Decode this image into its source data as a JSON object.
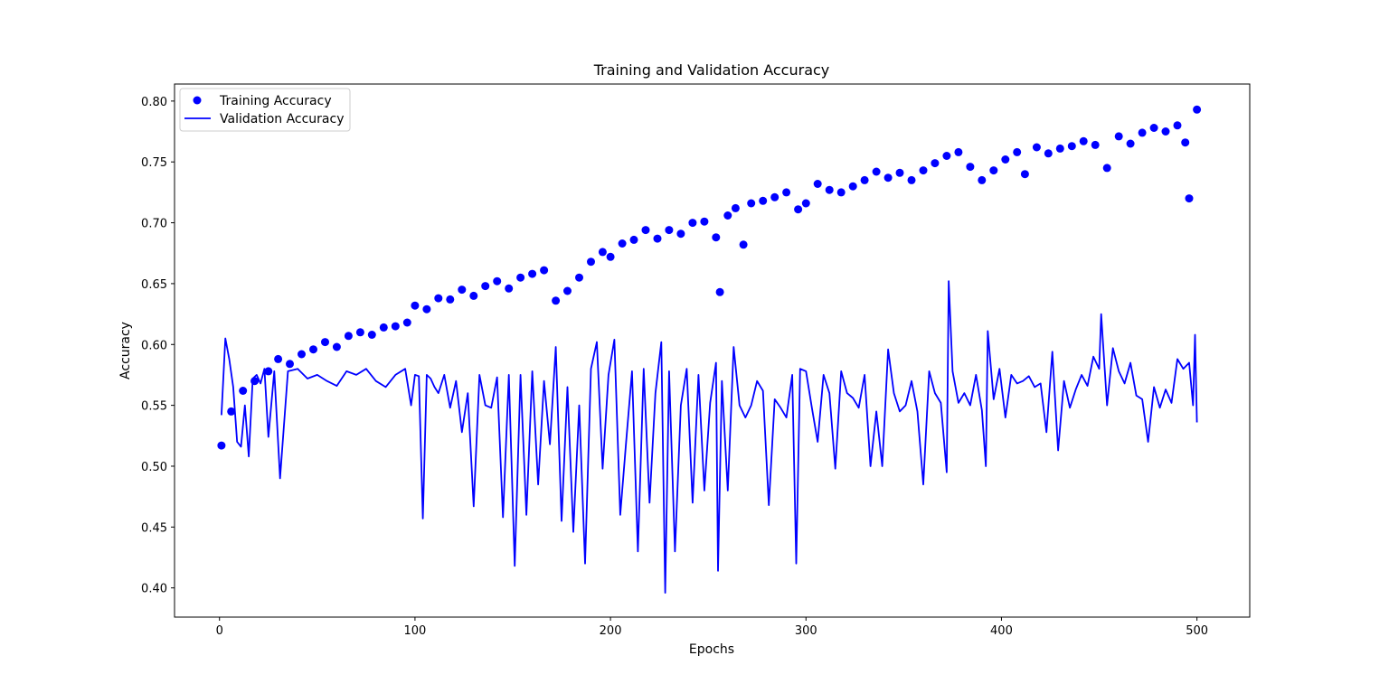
{
  "chart_data": {
    "type": "line",
    "title": "Training and Validation Accuracy",
    "xlabel": "Epochs",
    "ylabel": "Accuracy",
    "xlim": [
      -23,
      527
    ],
    "ylim": [
      0.376,
      0.814
    ],
    "xticks": [
      0,
      100,
      200,
      300,
      400,
      500
    ],
    "yticks": [
      0.4,
      0.45,
      0.5,
      0.55,
      0.6,
      0.65,
      0.7,
      0.75,
      0.8
    ],
    "grid": false,
    "legend_position": "top-left",
    "colors": {
      "series": "#0000ff",
      "axes": "#000000",
      "background": "#ffffff"
    },
    "series": [
      {
        "name": "Training Accuracy",
        "style": "markers",
        "x": [
          1,
          6,
          12,
          18,
          25,
          30,
          36,
          42,
          48,
          54,
          60,
          66,
          72,
          78,
          84,
          90,
          96,
          100,
          106,
          112,
          118,
          124,
          130,
          136,
          142,
          148,
          154,
          160,
          166,
          172,
          178,
          184,
          190,
          196,
          200,
          206,
          212,
          218,
          224,
          230,
          236,
          242,
          248,
          254,
          256,
          260,
          264,
          268,
          272,
          278,
          284,
          290,
          296,
          300,
          306,
          312,
          318,
          324,
          330,
          336,
          342,
          348,
          354,
          360,
          366,
          372,
          378,
          384,
          390,
          396,
          402,
          408,
          412,
          418,
          424,
          430,
          436,
          442,
          448,
          454,
          460,
          466,
          472,
          478,
          484,
          490,
          494,
          496,
          500
        ],
        "y": [
          0.517,
          0.545,
          0.562,
          0.57,
          0.578,
          0.588,
          0.584,
          0.592,
          0.596,
          0.602,
          0.598,
          0.607,
          0.61,
          0.608,
          0.614,
          0.615,
          0.618,
          0.632,
          0.629,
          0.638,
          0.637,
          0.645,
          0.64,
          0.648,
          0.652,
          0.646,
          0.655,
          0.658,
          0.661,
          0.636,
          0.644,
          0.655,
          0.668,
          0.676,
          0.672,
          0.683,
          0.686,
          0.694,
          0.687,
          0.694,
          0.691,
          0.7,
          0.701,
          0.688,
          0.643,
          0.706,
          0.712,
          0.682,
          0.716,
          0.718,
          0.721,
          0.725,
          0.711,
          0.716,
          0.732,
          0.727,
          0.725,
          0.73,
          0.735,
          0.742,
          0.737,
          0.741,
          0.735,
          0.743,
          0.749,
          0.755,
          0.758,
          0.746,
          0.735,
          0.743,
          0.752,
          0.758,
          0.74,
          0.762,
          0.757,
          0.761,
          0.763,
          0.767,
          0.764,
          0.745,
          0.771,
          0.765,
          0.774,
          0.778,
          0.775,
          0.78,
          0.766,
          0.72,
          0.793
        ]
      },
      {
        "name": "Validation Accuracy",
        "style": "line",
        "x": [
          1,
          3,
          5,
          7,
          9,
          11,
          13,
          15,
          17,
          19,
          21,
          23,
          25,
          28,
          31,
          35,
          40,
          45,
          50,
          55,
          60,
          65,
          70,
          75,
          80,
          85,
          90,
          95,
          98,
          100,
          102,
          104,
          106,
          108,
          110,
          112,
          115,
          118,
          121,
          124,
          127,
          130,
          133,
          136,
          139,
          142,
          145,
          148,
          151,
          154,
          157,
          160,
          163,
          166,
          169,
          172,
          175,
          178,
          181,
          184,
          187,
          190,
          193,
          196,
          199,
          202,
          205,
          208,
          211,
          214,
          217,
          220,
          223,
          226,
          228,
          230,
          233,
          236,
          239,
          242,
          245,
          248,
          251,
          254,
          255,
          257,
          260,
          263,
          266,
          269,
          272,
          275,
          278,
          281,
          284,
          287,
          290,
          293,
          295,
          297,
          300,
          303,
          306,
          309,
          312,
          315,
          318,
          321,
          324,
          327,
          330,
          333,
          336,
          339,
          342,
          345,
          348,
          351,
          354,
          357,
          360,
          363,
          366,
          369,
          372,
          373,
          375,
          378,
          381,
          384,
          387,
          390,
          392,
          393,
          396,
          399,
          402,
          405,
          408,
          411,
          414,
          417,
          420,
          423,
          426,
          429,
          432,
          435,
          438,
          441,
          444,
          447,
          450,
          451,
          454,
          457,
          460,
          463,
          466,
          469,
          472,
          475,
          478,
          481,
          484,
          487,
          490,
          493,
          496,
          498,
          499,
          500
        ],
        "y": [
          0.542,
          0.605,
          0.588,
          0.565,
          0.52,
          0.516,
          0.55,
          0.508,
          0.572,
          0.575,
          0.568,
          0.58,
          0.524,
          0.578,
          0.49,
          0.578,
          0.58,
          0.572,
          0.575,
          0.57,
          0.566,
          0.578,
          0.575,
          0.58,
          0.57,
          0.565,
          0.575,
          0.58,
          0.55,
          0.575,
          0.574,
          0.457,
          0.575,
          0.572,
          0.565,
          0.56,
          0.575,
          0.548,
          0.57,
          0.528,
          0.56,
          0.467,
          0.575,
          0.55,
          0.548,
          0.573,
          0.458,
          0.575,
          0.418,
          0.575,
          0.46,
          0.578,
          0.485,
          0.57,
          0.518,
          0.598,
          0.455,
          0.565,
          0.446,
          0.55,
          0.42,
          0.58,
          0.602,
          0.498,
          0.575,
          0.604,
          0.46,
          0.52,
          0.578,
          0.43,
          0.58,
          0.47,
          0.56,
          0.602,
          0.396,
          0.578,
          0.43,
          0.55,
          0.58,
          0.47,
          0.575,
          0.48,
          0.552,
          0.585,
          0.414,
          0.57,
          0.48,
          0.598,
          0.55,
          0.54,
          0.55,
          0.57,
          0.562,
          0.468,
          0.555,
          0.548,
          0.54,
          0.575,
          0.42,
          0.58,
          0.578,
          0.548,
          0.52,
          0.575,
          0.56,
          0.498,
          0.578,
          0.56,
          0.556,
          0.548,
          0.575,
          0.5,
          0.545,
          0.5,
          0.596,
          0.56,
          0.545,
          0.55,
          0.57,
          0.545,
          0.485,
          0.578,
          0.56,
          0.552,
          0.495,
          0.652,
          0.578,
          0.552,
          0.56,
          0.55,
          0.575,
          0.546,
          0.5,
          0.611,
          0.555,
          0.58,
          0.54,
          0.575,
          0.568,
          0.57,
          0.574,
          0.565,
          0.568,
          0.528,
          0.594,
          0.513,
          0.57,
          0.548,
          0.563,
          0.575,
          0.566,
          0.59,
          0.58,
          0.625,
          0.55,
          0.597,
          0.578,
          0.568,
          0.585,
          0.558,
          0.555,
          0.52,
          0.565,
          0.548,
          0.563,
          0.552,
          0.588,
          0.58,
          0.585,
          0.55,
          0.608,
          0.536
        ]
      }
    ]
  }
}
